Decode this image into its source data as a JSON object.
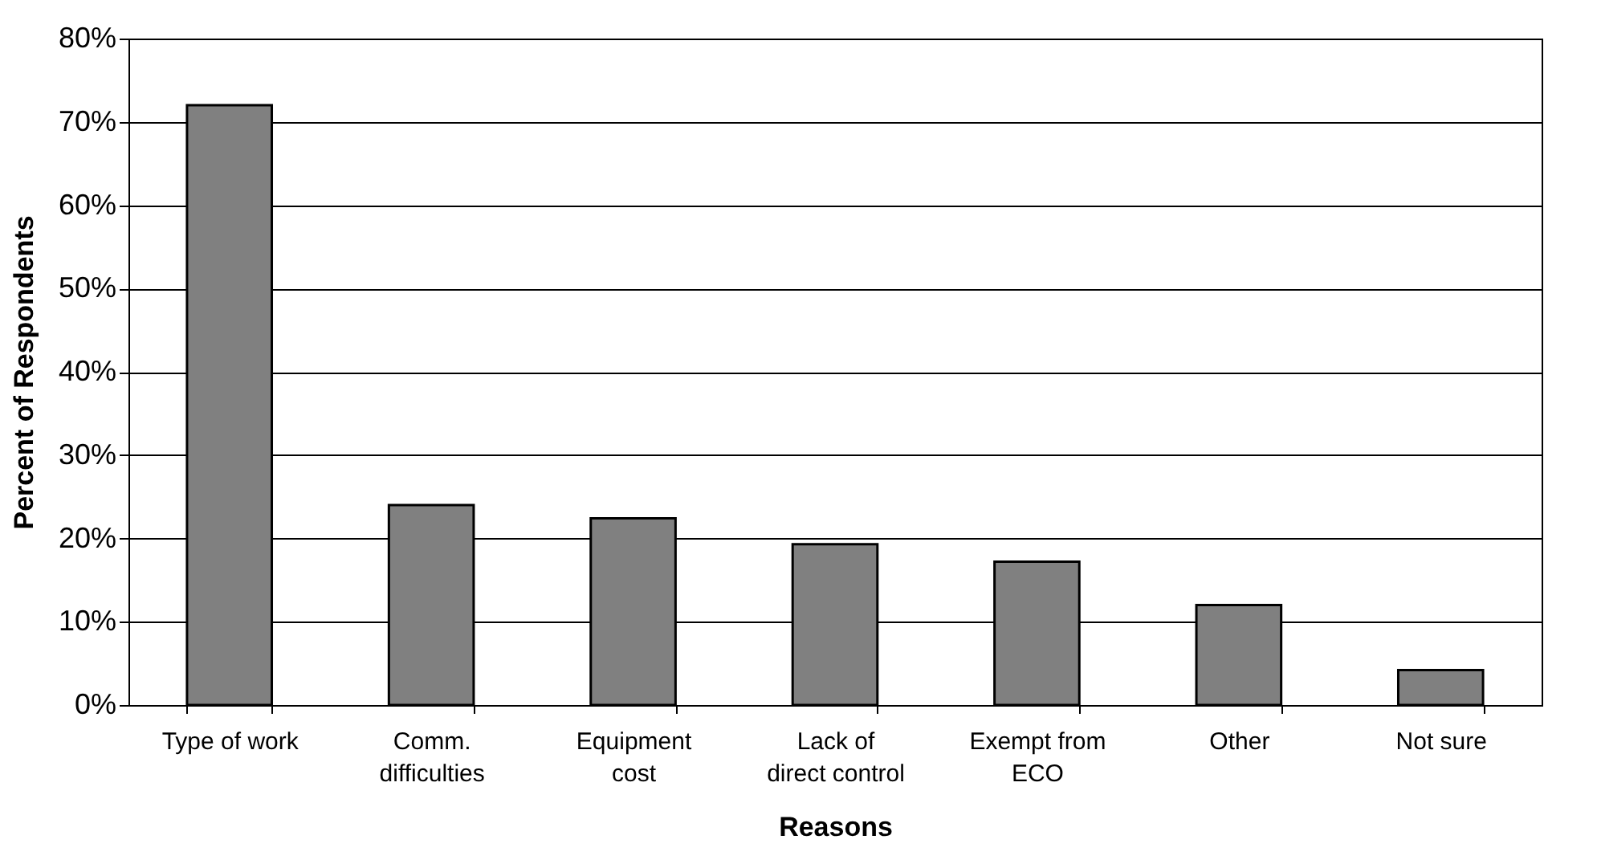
{
  "chart_data": {
    "type": "bar",
    "xlabel": "Reasons",
    "ylabel": "Percent of Respondents",
    "categories": [
      "Type of work",
      "Comm.\ndifficulties",
      "Equipment\ncost",
      "Lack of\ndirect control",
      "Exempt from\nECO",
      "Other",
      "Not sure"
    ],
    "values": [
      72,
      24,
      22.4,
      19.3,
      17.2,
      12,
      4.2
    ],
    "color": "#808080",
    "ylim": [
      0,
      80
    ],
    "yticks": [
      {
        "value": 0,
        "label": "0%"
      },
      {
        "value": 10,
        "label": "10%"
      },
      {
        "value": 20,
        "label": "20%"
      },
      {
        "value": 30,
        "label": "30%"
      },
      {
        "value": 40,
        "label": "40%"
      },
      {
        "value": 50,
        "label": "50%"
      },
      {
        "value": 60,
        "label": "60%"
      },
      {
        "value": 70,
        "label": "70%"
      },
      {
        "value": 80,
        "label": "80%"
      }
    ],
    "grid": "y"
  }
}
